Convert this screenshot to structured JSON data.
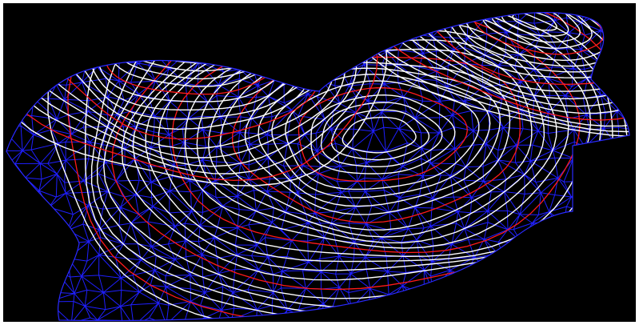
{
  "viewport": {
    "background": "#000000",
    "frame": "#ffffff"
  },
  "surface": {
    "kind": "terrain TIN mesh with contour lines",
    "mesh_color": "#1f1fff",
    "minor_contour_color": "#ffffff",
    "major_contour_color": "#ff1a1a",
    "major_contour_every": 5
  }
}
